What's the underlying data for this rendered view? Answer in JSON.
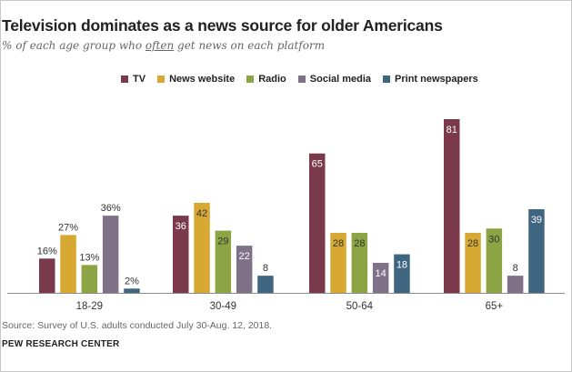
{
  "chart_data": {
    "type": "bar",
    "title": "Television dominates as a news source for older Americans",
    "subtitle_pre": "% of each age group who ",
    "subtitle_emph": "often",
    "subtitle_post": " get news on each platform",
    "categories": [
      "18-29",
      "30-49",
      "50-64",
      "65+"
    ],
    "series": [
      {
        "name": "TV",
        "color": "#7a3a4c",
        "values": [
          16,
          36,
          65,
          81
        ],
        "labels": [
          "16%",
          "36",
          "65",
          "81"
        ]
      },
      {
        "name": "News website",
        "color": "#d7a932",
        "values": [
          27,
          42,
          28,
          28
        ],
        "labels": [
          "27%",
          "42",
          "28",
          "28"
        ]
      },
      {
        "name": "Radio",
        "color": "#8da444",
        "values": [
          13,
          29,
          28,
          30
        ],
        "labels": [
          "13%",
          "29",
          "28",
          "30"
        ]
      },
      {
        "name": "Social media",
        "color": "#7f7288",
        "values": [
          36,
          22,
          14,
          8
        ],
        "labels": [
          "36%",
          "22",
          "14",
          "8"
        ]
      },
      {
        "name": "Print newspapers",
        "color": "#3e6680",
        "values": [
          2,
          8,
          18,
          39
        ],
        "labels": [
          "2%",
          "8",
          "18",
          "39"
        ]
      }
    ],
    "ylim": [
      0,
      81
    ],
    "xlabel": "",
    "ylabel": "",
    "grid": false
  },
  "source": "Source: Survey of U.S. adults conducted July 30-Aug. 12, 2018.",
  "brand": "PEW RESEARCH CENTER"
}
